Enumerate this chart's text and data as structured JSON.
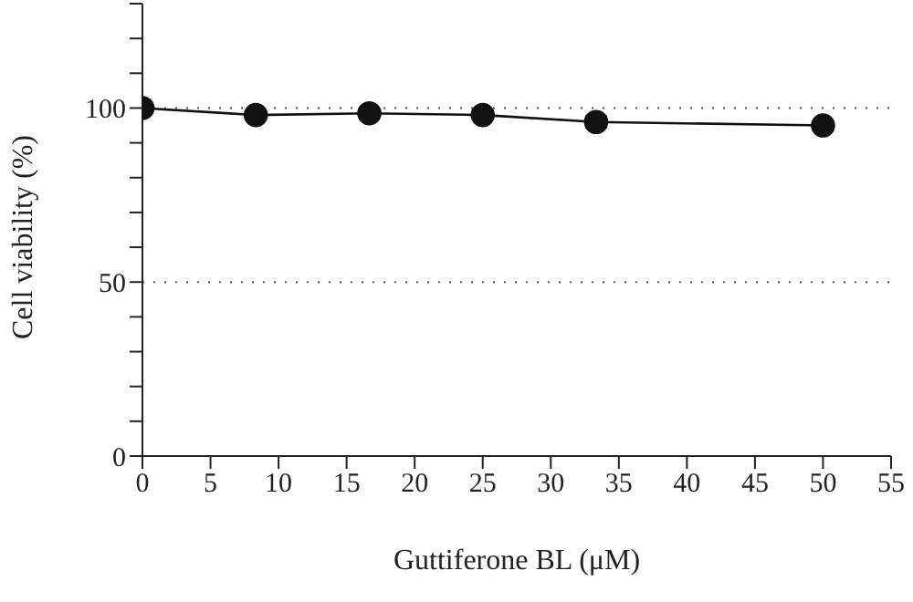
{
  "chart_data": {
    "type": "line",
    "xlabel": "Guttiferone BL (μM)",
    "ylabel": "Cell viability (%)",
    "x": [
      0,
      8.33,
      16.67,
      25,
      33.33,
      50
    ],
    "series": [
      {
        "color": "#111111",
        "values": [
          100,
          98,
          98.5,
          98,
          96,
          95
        ],
        "errors": [
          null,
          null,
          null,
          null,
          1.5,
          null
        ]
      }
    ],
    "marker": "circle",
    "line_style": "solid",
    "xlim": [
      0,
      55
    ],
    "xticks": [
      0,
      5,
      10,
      15,
      20,
      25,
      30,
      35,
      40,
      45,
      50,
      55
    ],
    "ylim": [
      0,
      130
    ],
    "yticks": [
      0,
      {
        "value": 10,
        "label": null
      },
      {
        "value": 20,
        "label": null
      },
      {
        "value": 30,
        "label": null
      },
      {
        "value": 40,
        "label": null
      },
      50,
      {
        "value": 60,
        "label": null
      },
      {
        "value": 70,
        "label": null
      },
      {
        "value": 80,
        "label": null
      },
      {
        "value": 90,
        "label": null
      },
      100,
      {
        "value": 110,
        "label": null
      },
      {
        "value": 120,
        "label": null
      },
      {
        "value": 130,
        "label": null
      }
    ],
    "ref_lines": [
      {
        "axis": "y",
        "value": 100,
        "line_style": "dotted",
        "color": "#555555"
      },
      {
        "axis": "y",
        "value": 50,
        "line_style": "dotted",
        "color": "#555555"
      }
    ],
    "grid": false,
    "legend": false
  }
}
